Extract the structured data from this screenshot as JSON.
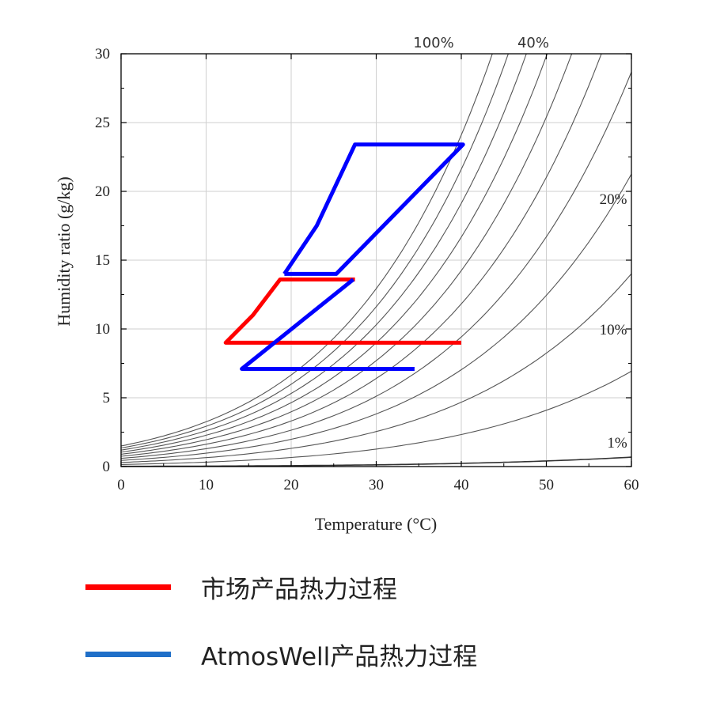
{
  "chart_data": {
    "type": "line",
    "xlabel": "Temperature (°C)",
    "ylabel": "Humidity ratio (g/kg)",
    "xlim": [
      0,
      60
    ],
    "ylim": [
      0,
      30
    ],
    "x_ticks": [
      0,
      10,
      20,
      30,
      40,
      50,
      60
    ],
    "y_ticks": [
      0,
      5,
      10,
      15,
      20,
      25,
      30
    ],
    "grid": true,
    "rh_curves_percent": [
      100,
      90,
      80,
      70,
      60,
      50,
      40,
      30,
      20,
      10,
      1
    ],
    "rh_curve_labels": [
      "100%",
      "40%",
      "20%",
      "10%",
      "1%"
    ],
    "series": [
      {
        "name": "市场产品热力过程",
        "color": "#ff0000",
        "points": [
          [
            40,
            9.0
          ],
          [
            12.3,
            9.0
          ],
          [
            15.5,
            11.0
          ],
          [
            18.7,
            13.6
          ],
          [
            27.5,
            13.6
          ]
        ]
      },
      {
        "name": "AtmosWell产品热力过程",
        "color": "#0000ff",
        "points": [
          [
            34.5,
            7.1
          ],
          [
            14.2,
            7.1
          ],
          [
            27.3,
            13.6
          ]
        ]
      },
      {
        "color": "#0000ff",
        "points": [
          [
            19.2,
            14.0
          ],
          [
            25.3,
            14.0
          ],
          [
            40.2,
            23.4
          ],
          [
            27.5,
            23.4
          ],
          [
            23.0,
            17.5
          ],
          [
            19.2,
            14.0
          ]
        ]
      }
    ]
  },
  "legend": {
    "items": [
      {
        "label": "市场产品热力过程",
        "color": "#ff0000"
      },
      {
        "label": "AtmosWell产品热力过程",
        "color": "#1f6fc8"
      }
    ]
  }
}
